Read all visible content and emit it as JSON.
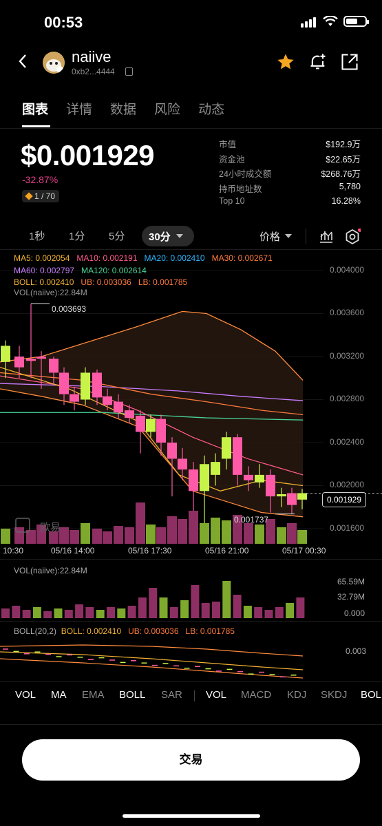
{
  "status_bar": {
    "time": "00:53"
  },
  "header": {
    "token_name": "naiive",
    "address": "0xb2...4444"
  },
  "tabs": [
    "图表",
    "详情",
    "数据",
    "风险",
    "动态"
  ],
  "summary": {
    "price": "$0.001929",
    "change": "-32.87%",
    "rank": "1 / 70",
    "stats": [
      {
        "label": "市值",
        "value": "$192.9万"
      },
      {
        "label": "资金池",
        "value": "$22.65万"
      },
      {
        "label": "24小时成交额",
        "value": "$268.76万"
      },
      {
        "label": "持币地址数",
        "value": "5,780"
      },
      {
        "label": "Top 10",
        "value": "16.28%"
      }
    ]
  },
  "timeframes": [
    "1秒",
    "1分",
    "5分",
    "30分"
  ],
  "price_selector": "价格",
  "chart": {
    "legend_row1": [
      {
        "text": "MA5: 0.002054",
        "color": "#f2b233"
      },
      {
        "text": "MA10: 0.002191",
        "color": "#ff5a8a"
      },
      {
        "text": "MA20: 0.002410",
        "color": "#2fb7ff"
      },
      {
        "text": "MA30: 0.002671",
        "color": "#ff7a3c"
      }
    ],
    "legend_row2": [
      {
        "text": "MA60: 0.002797",
        "color": "#c77dff"
      },
      {
        "text": "MA120: 0.002614",
        "color": "#48d597"
      }
    ],
    "legend_row3": [
      {
        "text": "BOLL: 0.002410",
        "color": "#f2b233"
      },
      {
        "text": "UB: 0.003036",
        "color": "#ff7a3c"
      },
      {
        "text": "LB: 0.001785",
        "color": "#ff7a3c"
      }
    ],
    "vol_label": "VOL(naiive):22.84M",
    "y_ticks": [
      "0.004000",
      "0.003600",
      "0.003200",
      "0.002800",
      "0.002400",
      "0.002000",
      "0.001600"
    ],
    "high_marker": "0.003693",
    "low_marker": "0.001737",
    "current_price": "0.001929",
    "x_ticks": [
      "10:30",
      "05/16 14:00",
      "05/16 17:30",
      "05/16 21:00",
      "05/17 00:30"
    ],
    "watermark": "欧易",
    "up_color": "#c8f44a",
    "down_color": "#ff5aa8"
  },
  "volume_panel": {
    "label": "VOL(naiive):22.84M",
    "ticks": [
      "65.59M",
      "32.79M",
      "0.000"
    ]
  },
  "boll_panel": {
    "label_prefix": "BOLL(20,2)",
    "boll": "BOLL: 0.002410",
    "ub": "UB: 0.003036",
    "lb": "LB: 0.001785",
    "tick": "0.003"
  },
  "indicator_tabs": {
    "main": [
      "VOL",
      "MA",
      "EMA",
      "BOLL",
      "SAR"
    ],
    "sub": [
      "VOL",
      "MACD",
      "KDJ",
      "SKDJ",
      "BOLL"
    ]
  },
  "trade_button": "交易"
}
